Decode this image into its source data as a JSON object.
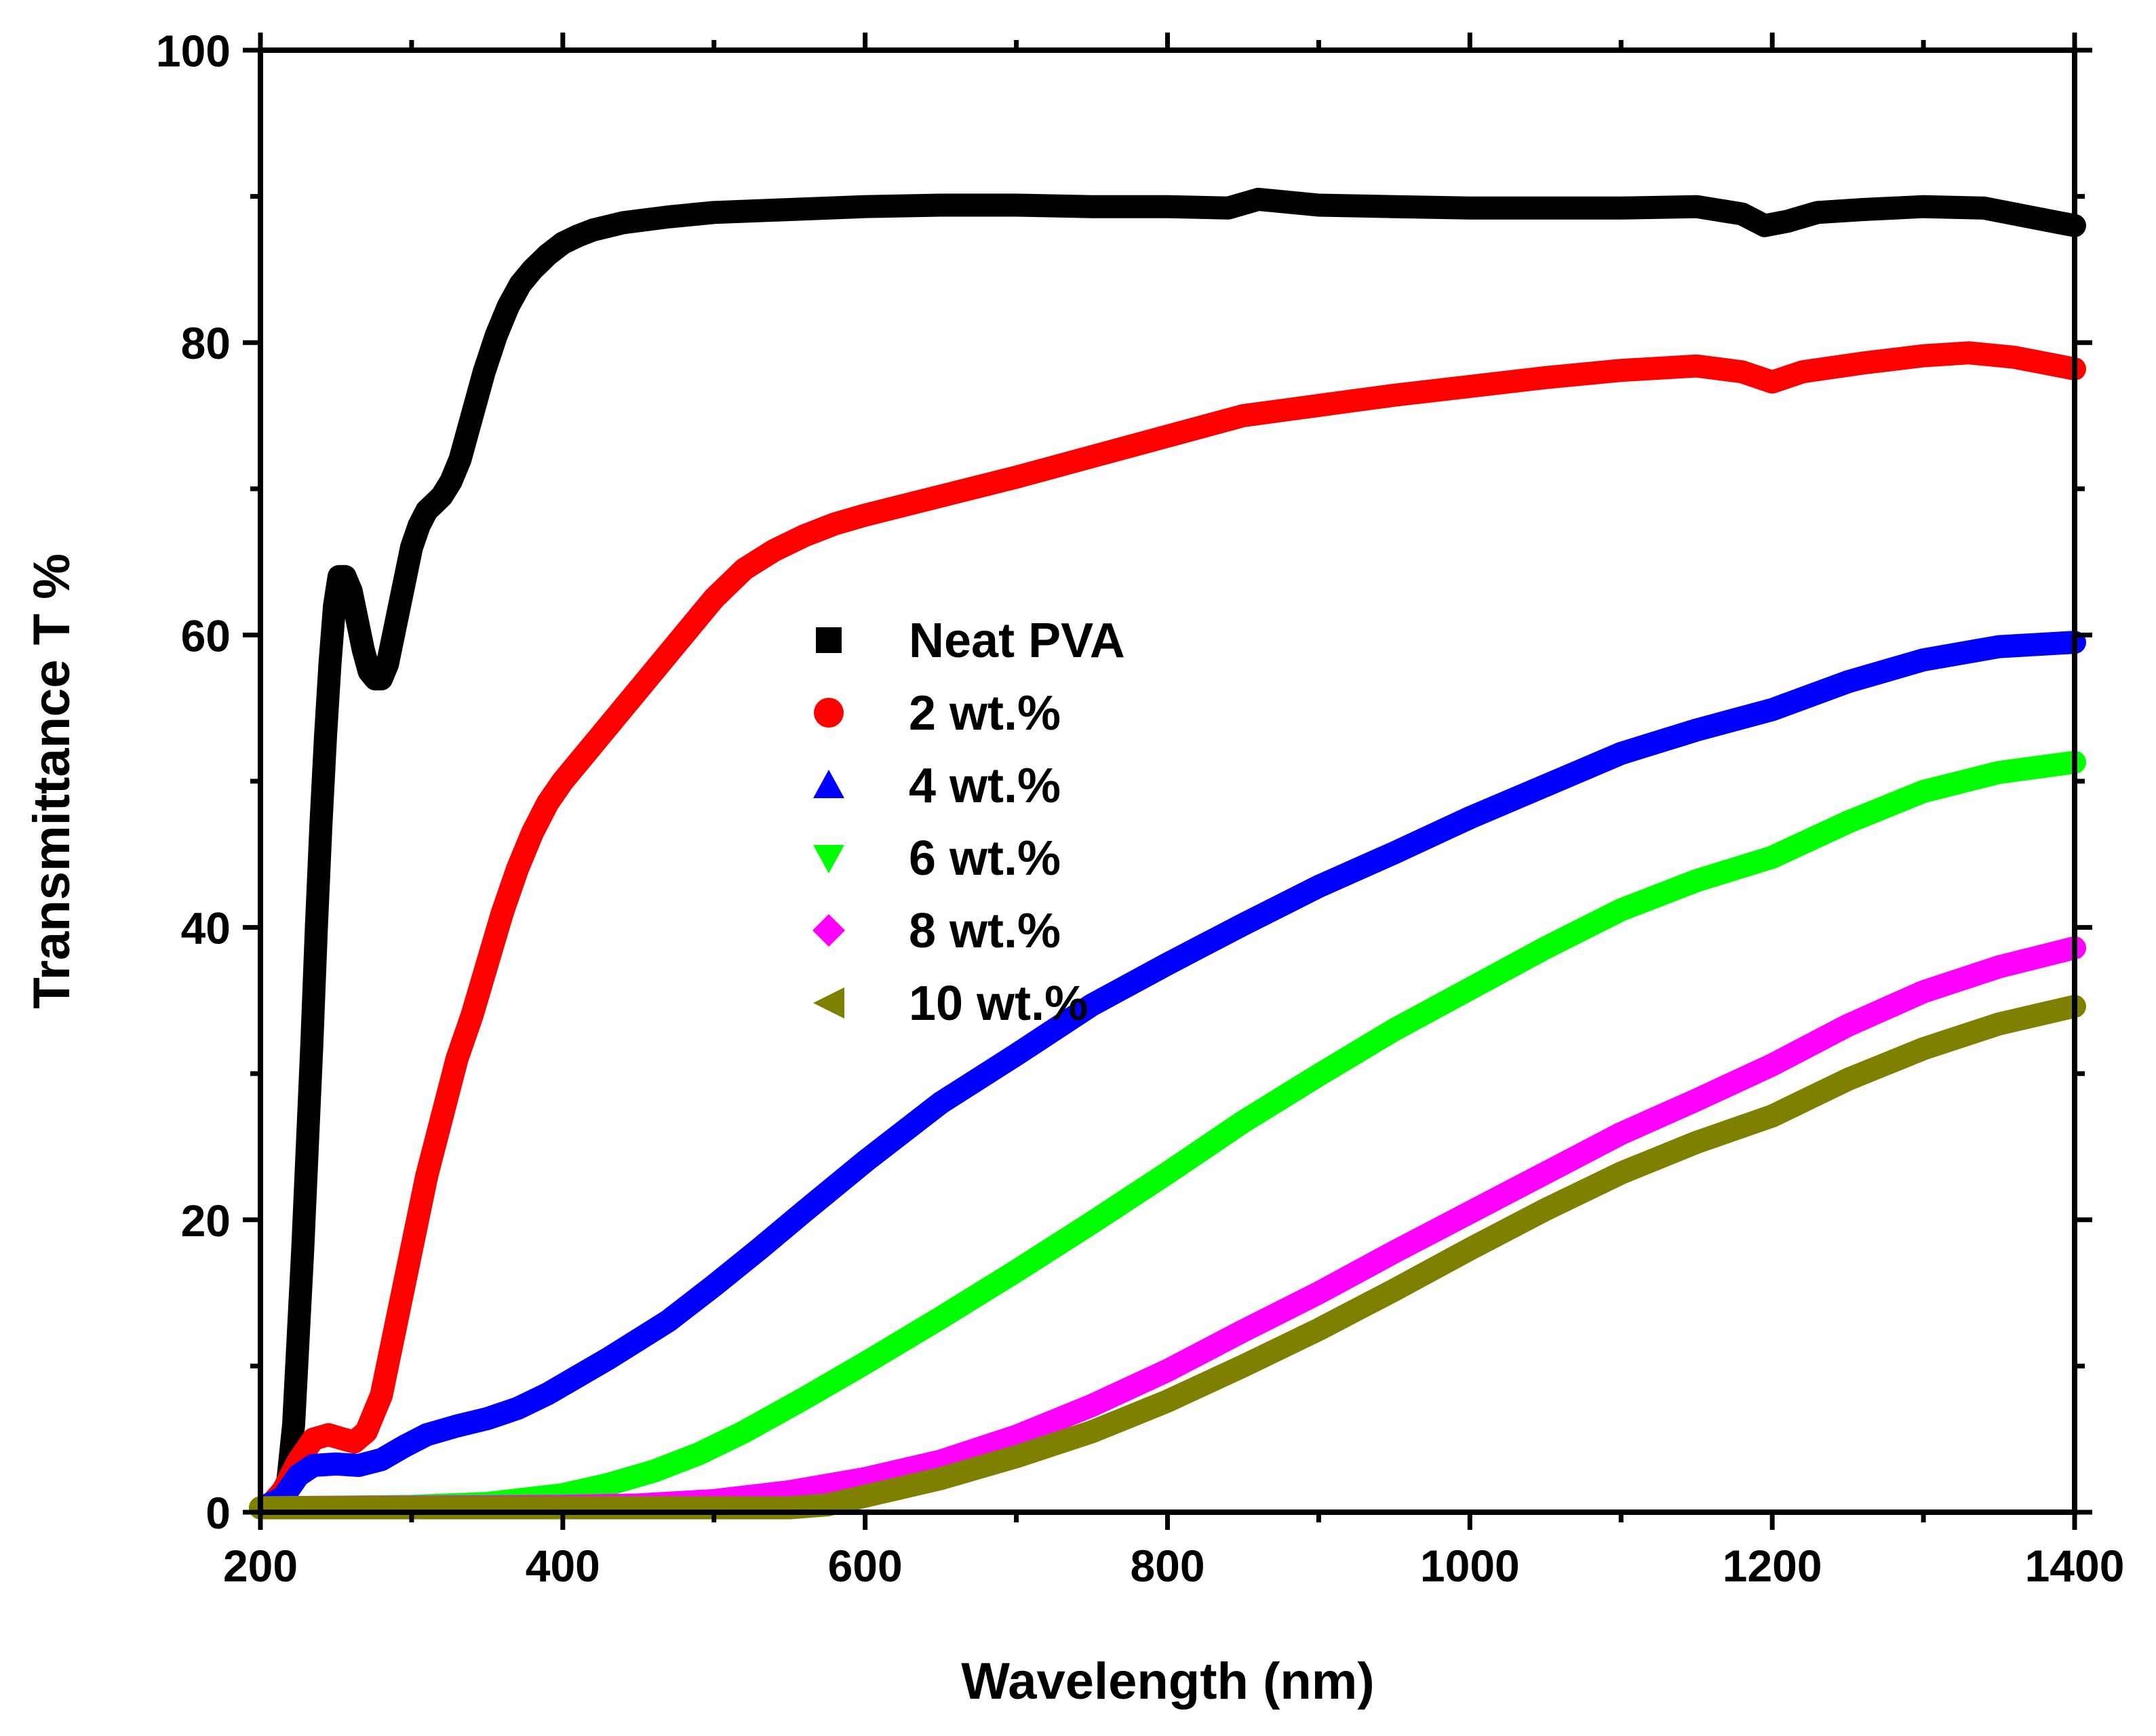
{
  "chart_data": {
    "type": "line",
    "title": "",
    "xlabel": "Wavelength (nm)",
    "ylabel": "Transmittance T %",
    "xlim": [
      200,
      1400
    ],
    "ylim": [
      0,
      100
    ],
    "xticks": [
      "200",
      "400",
      "600",
      "800",
      "1000",
      "1200",
      "1400"
    ],
    "yticks": [
      "0",
      "20",
      "40",
      "60",
      "80",
      "100"
    ],
    "legend_position": "center",
    "grid": false,
    "series": [
      {
        "name": "Neat PVA",
        "color": "#000000",
        "marker": "square",
        "points": [
          [
            213,
            0.5
          ],
          [
            218,
            2
          ],
          [
            222,
            6
          ],
          [
            225,
            12
          ],
          [
            228,
            18
          ],
          [
            231,
            25
          ],
          [
            234,
            32
          ],
          [
            237,
            40
          ],
          [
            240,
            47
          ],
          [
            243,
            53
          ],
          [
            246,
            58
          ],
          [
            249,
            62
          ],
          [
            252,
            64
          ],
          [
            256,
            64
          ],
          [
            260,
            63
          ],
          [
            264,
            61
          ],
          [
            268,
            59
          ],
          [
            272,
            57.5
          ],
          [
            276,
            57
          ],
          [
            280,
            57
          ],
          [
            284,
            58
          ],
          [
            288,
            60
          ],
          [
            292,
            62
          ],
          [
            296,
            64
          ],
          [
            300,
            66
          ],
          [
            305,
            67.5
          ],
          [
            310,
            68.5
          ],
          [
            315,
            69
          ],
          [
            320,
            69.5
          ],
          [
            326,
            70.5
          ],
          [
            332,
            72
          ],
          [
            340,
            75
          ],
          [
            348,
            78
          ],
          [
            356,
            80.5
          ],
          [
            364,
            82.5
          ],
          [
            372,
            84
          ],
          [
            380,
            85
          ],
          [
            390,
            86
          ],
          [
            400,
            86.8
          ],
          [
            410,
            87.3
          ],
          [
            420,
            87.7
          ],
          [
            440,
            88.2
          ],
          [
            470,
            88.6
          ],
          [
            500,
            88.9
          ],
          [
            550,
            89.1
          ],
          [
            600,
            89.3
          ],
          [
            650,
            89.4
          ],
          [
            700,
            89.4
          ],
          [
            750,
            89.3
          ],
          [
            800,
            89.3
          ],
          [
            840,
            89.2
          ],
          [
            860,
            89.8
          ],
          [
            880,
            89.6
          ],
          [
            900,
            89.4
          ],
          [
            950,
            89.3
          ],
          [
            1000,
            89.2
          ],
          [
            1050,
            89.2
          ],
          [
            1100,
            89.2
          ],
          [
            1150,
            89.3
          ],
          [
            1180,
            88.8
          ],
          [
            1195,
            88.0
          ],
          [
            1210,
            88.3
          ],
          [
            1230,
            88.9
          ],
          [
            1260,
            89.1
          ],
          [
            1300,
            89.3
          ],
          [
            1340,
            89.2
          ],
          [
            1370,
            88.6
          ],
          [
            1400,
            88.0
          ]
        ]
      },
      {
        "name": "2 wt.%",
        "color": "#ff0000",
        "marker": "circle",
        "points": [
          [
            205,
            0.3
          ],
          [
            215,
            1.5
          ],
          [
            225,
            3.5
          ],
          [
            235,
            5
          ],
          [
            245,
            5.3
          ],
          [
            255,
            5
          ],
          [
            262,
            4.8
          ],
          [
            270,
            5.5
          ],
          [
            280,
            8
          ],
          [
            290,
            13
          ],
          [
            300,
            18
          ],
          [
            310,
            23
          ],
          [
            320,
            27
          ],
          [
            330,
            31
          ],
          [
            340,
            34
          ],
          [
            350,
            37.5
          ],
          [
            360,
            41
          ],
          [
            370,
            44
          ],
          [
            380,
            46.5
          ],
          [
            390,
            48.5
          ],
          [
            400,
            50
          ],
          [
            420,
            52.5
          ],
          [
            440,
            55
          ],
          [
            460,
            57.5
          ],
          [
            480,
            60
          ],
          [
            500,
            62.5
          ],
          [
            520,
            64.5
          ],
          [
            540,
            65.8
          ],
          [
            560,
            66.8
          ],
          [
            580,
            67.6
          ],
          [
            600,
            68.2
          ],
          [
            650,
            69.5
          ],
          [
            700,
            70.8
          ],
          [
            750,
            72.2
          ],
          [
            800,
            73.6
          ],
          [
            850,
            75
          ],
          [
            900,
            75.7
          ],
          [
            950,
            76.4
          ],
          [
            1000,
            77
          ],
          [
            1050,
            77.6
          ],
          [
            1100,
            78.1
          ],
          [
            1150,
            78.4
          ],
          [
            1180,
            78.0
          ],
          [
            1200,
            77.3
          ],
          [
            1220,
            78.0
          ],
          [
            1260,
            78.6
          ],
          [
            1300,
            79.1
          ],
          [
            1330,
            79.3
          ],
          [
            1360,
            79.0
          ],
          [
            1400,
            78.2
          ]
        ]
      },
      {
        "name": "4 wt.%",
        "color": "#0000ff",
        "marker": "triangle-up",
        "points": [
          [
            205,
            0.5
          ],
          [
            215,
            1
          ],
          [
            225,
            2.5
          ],
          [
            235,
            3.2
          ],
          [
            250,
            3.3
          ],
          [
            265,
            3.2
          ],
          [
            280,
            3.6
          ],
          [
            295,
            4.5
          ],
          [
            310,
            5.3
          ],
          [
            330,
            5.9
          ],
          [
            350,
            6.4
          ],
          [
            370,
            7.1
          ],
          [
            390,
            8.1
          ],
          [
            410,
            9.3
          ],
          [
            430,
            10.5
          ],
          [
            450,
            11.8
          ],
          [
            470,
            13.1
          ],
          [
            500,
            15.5
          ],
          [
            530,
            18
          ],
          [
            560,
            20.6
          ],
          [
            600,
            24
          ],
          [
            650,
            28
          ],
          [
            700,
            31.3
          ],
          [
            750,
            34.7
          ],
          [
            800,
            37.5
          ],
          [
            850,
            40.2
          ],
          [
            900,
            42.8
          ],
          [
            950,
            45.1
          ],
          [
            1000,
            47.5
          ],
          [
            1050,
            49.7
          ],
          [
            1100,
            51.9
          ],
          [
            1150,
            53.5
          ],
          [
            1200,
            54.9
          ],
          [
            1250,
            56.8
          ],
          [
            1300,
            58.3
          ],
          [
            1350,
            59.2
          ],
          [
            1400,
            59.5
          ]
        ]
      },
      {
        "name": "6 wt.%",
        "color": "#00ff00",
        "marker": "triangle-down",
        "points": [
          [
            200,
            0.3
          ],
          [
            300,
            0.4
          ],
          [
            350,
            0.6
          ],
          [
            400,
            1.2
          ],
          [
            430,
            1.9
          ],
          [
            460,
            2.8
          ],
          [
            490,
            4.0
          ],
          [
            520,
            5.5
          ],
          [
            560,
            7.8
          ],
          [
            600,
            10.2
          ],
          [
            650,
            13.3
          ],
          [
            700,
            16.5
          ],
          [
            750,
            19.8
          ],
          [
            800,
            23.2
          ],
          [
            850,
            26.7
          ],
          [
            900,
            29.9
          ],
          [
            950,
            33.0
          ],
          [
            1000,
            35.8
          ],
          [
            1050,
            38.6
          ],
          [
            1100,
            41.2
          ],
          [
            1150,
            43.2
          ],
          [
            1200,
            44.8
          ],
          [
            1250,
            47.2
          ],
          [
            1300,
            49.3
          ],
          [
            1350,
            50.6
          ],
          [
            1400,
            51.3
          ]
        ]
      },
      {
        "name": "8 wt.%",
        "color": "#ff00ff",
        "marker": "diamond",
        "points": [
          [
            200,
            0.3
          ],
          [
            400,
            0.4
          ],
          [
            450,
            0.5
          ],
          [
            500,
            0.8
          ],
          [
            550,
            1.4
          ],
          [
            600,
            2.3
          ],
          [
            650,
            3.5
          ],
          [
            700,
            5.2
          ],
          [
            750,
            7.3
          ],
          [
            800,
            9.7
          ],
          [
            850,
            12.4
          ],
          [
            900,
            15.0
          ],
          [
            950,
            17.8
          ],
          [
            1000,
            20.5
          ],
          [
            1050,
            23.2
          ],
          [
            1100,
            25.9
          ],
          [
            1150,
            28.2
          ],
          [
            1200,
            30.6
          ],
          [
            1250,
            33.3
          ],
          [
            1300,
            35.6
          ],
          [
            1350,
            37.3
          ],
          [
            1400,
            38.6
          ]
        ]
      },
      {
        "name": "10 wt.%",
        "color": "#808000",
        "marker": "triangle-left",
        "points": [
          [
            200,
            0.3
          ],
          [
            550,
            0.3
          ],
          [
            575,
            0.5
          ],
          [
            600,
            1.1
          ],
          [
            650,
            2.3
          ],
          [
            700,
            3.8
          ],
          [
            750,
            5.5
          ],
          [
            800,
            7.6
          ],
          [
            850,
            10.0
          ],
          [
            900,
            12.5
          ],
          [
            950,
            15.2
          ],
          [
            1000,
            18.0
          ],
          [
            1050,
            20.7
          ],
          [
            1100,
            23.2
          ],
          [
            1150,
            25.3
          ],
          [
            1200,
            27.1
          ],
          [
            1250,
            29.6
          ],
          [
            1300,
            31.7
          ],
          [
            1350,
            33.4
          ],
          [
            1400,
            34.6
          ]
        ]
      }
    ]
  }
}
